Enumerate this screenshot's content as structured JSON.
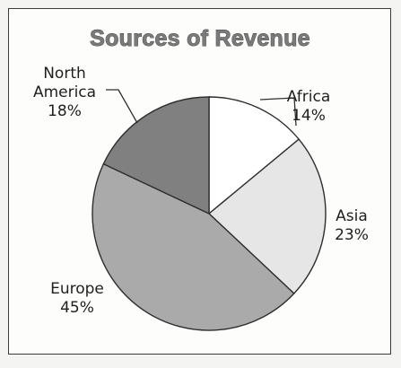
{
  "chart_data": {
    "type": "pie",
    "title": "Sources of Revenue",
    "slices": [
      {
        "label_lines": [
          "Africa"
        ],
        "value": 14,
        "value_text": "14%",
        "color": "#ffffff"
      },
      {
        "label_lines": [
          "Asia"
        ],
        "value": 23,
        "value_text": "23%",
        "color": "#e6e6e6"
      },
      {
        "label_lines": [
          "Europe"
        ],
        "value": 45,
        "value_text": "45%",
        "color": "#aaaaaa"
      },
      {
        "label_lines": [
          "North",
          "America"
        ],
        "value": 18,
        "value_text": "18%",
        "color": "#808080"
      }
    ],
    "start_angle_deg": 0,
    "direction": "clockwise"
  }
}
